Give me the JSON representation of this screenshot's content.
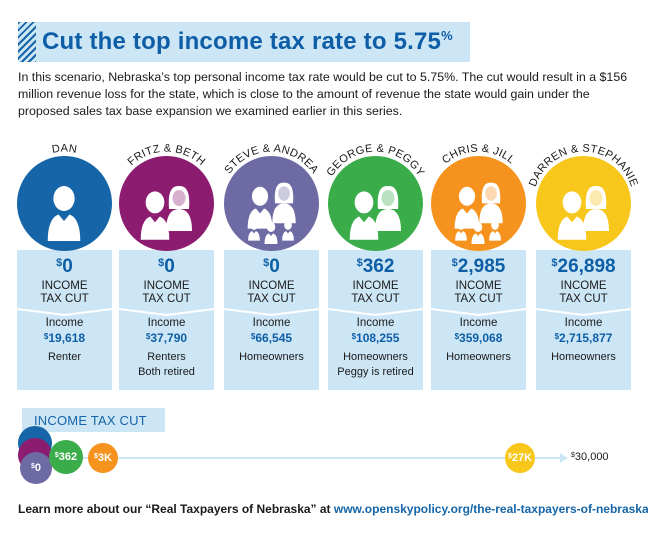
{
  "title": {
    "text": "Cut the top income tax rate to 5.75",
    "suffix": "%"
  },
  "intro": "In this scenario, Nebraska’s top personal income tax rate would be cut to 5.75%. The cut would result in a $156 million revenue loss for the state, which is close to the amount of revenue the state would gain under the proposed sales tax base expansion we examined earlier in this series.",
  "currency_symbol": "$",
  "cut_label_line1": "INCOME",
  "cut_label_line2": "TAX CUT",
  "income_label": "Income",
  "households": [
    {
      "name": "DAN",
      "color": "#1565a8",
      "people": "single",
      "cut": "0",
      "income": "19,618",
      "status": [
        "Renter"
      ]
    },
    {
      "name": "FRITZ & BETH",
      "color": "#8c1c6f",
      "people": "couple",
      "cut": "0",
      "income": "37,790",
      "status": [
        "Renters",
        "Both retired"
      ]
    },
    {
      "name": "STEVE & ANDREA",
      "color": "#6d6aa4",
      "people": "family",
      "cut": "0",
      "income": "66,545",
      "status": [
        "Homeowners"
      ]
    },
    {
      "name": "GEORGE & PEGGY",
      "color": "#3aad4a",
      "people": "couple",
      "cut": "362",
      "income": "108,255",
      "status": [
        "Homeowners",
        "Peggy is retired"
      ]
    },
    {
      "name": "CHRIS & JILL",
      "color": "#f5931e",
      "people": "family",
      "cut": "2,985",
      "income": "359,068",
      "status": [
        "Homeowners"
      ]
    },
    {
      "name": "DARREN & STEPHANIE",
      "color": "#f7c71c",
      "people": "couple",
      "cut": "26,898",
      "income": "2,715,877",
      "status": [
        "Homeowners"
      ]
    }
  ],
  "scale": {
    "title": "INCOME TAX CUT",
    "labels": {
      "zero": "0",
      "george": "362",
      "chris": "3K",
      "darren": "27K",
      "end": "30,000"
    },
    "max": 30000,
    "colors": {
      "line": "#cde6f5",
      "dan": "#1565a8",
      "fritz": "#8c1c6f",
      "steve": "#6d6aa4",
      "george": "#3aad4a",
      "chris": "#f5931e",
      "darren": "#f7c71c"
    }
  },
  "footer": {
    "text": "Learn more about our “Real Taxpayers of Nebraska” at ",
    "link": "www.openskypolicy.org/the-real-taxpayers-of-nebraska"
  },
  "colors": {
    "title": "#0d5ea6",
    "band": "#cde6f5",
    "accent": "#1565a8"
  }
}
